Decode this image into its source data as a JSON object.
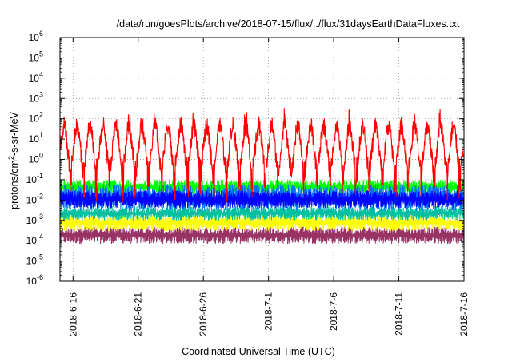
{
  "chart_data": {
    "type": "line",
    "title": "/data/run/goesPlots/archive/2018-07-15/flux/../flux/31daysEarthDataFluxes.txt",
    "xlabel": "Coordinated Universal Time (UTC)",
    "ylabel_parts": [
      "protons/cm",
      "2",
      "-s-sr-MeV"
    ],
    "y_scale": "log",
    "ylim": [
      1e-06,
      1000000.0
    ],
    "y_ticks": [
      {
        "base": "10",
        "exp": "-6"
      },
      {
        "base": "10",
        "exp": "-5"
      },
      {
        "base": "10",
        "exp": "-4"
      },
      {
        "base": "10",
        "exp": "-3"
      },
      {
        "base": "10",
        "exp": "-2"
      },
      {
        "base": "10",
        "exp": "-1"
      },
      {
        "base": "10",
        "exp": "0"
      },
      {
        "base": "10",
        "exp": "1"
      },
      {
        "base": "10",
        "exp": "2"
      },
      {
        "base": "10",
        "exp": "3"
      },
      {
        "base": "10",
        "exp": "4"
      },
      {
        "base": "10",
        "exp": "5"
      },
      {
        "base": "10",
        "exp": "6"
      }
    ],
    "x_range": [
      "2018-06-15",
      "2018-07-16"
    ],
    "x_ticks": [
      "2018-6-16",
      "2018-6-21",
      "2018-6-26",
      "2018-7-1",
      "2018-7-6",
      "2018-7-11",
      "2018-7-16"
    ],
    "grid": true,
    "series": [
      {
        "color": "#ff0000",
        "level_low": 0.3,
        "level_high": 60,
        "note_values": [
          100,
          0.1,
          200,
          0.2,
          150
        ]
      },
      {
        "color": "#00ff00",
        "level_low": 0.02,
        "level_high": 0.1
      },
      {
        "color": "#0070ff",
        "level_low": 0.003,
        "level_high": 0.06
      },
      {
        "color": "#0000ff",
        "level_low": 0.004,
        "level_high": 0.03
      },
      {
        "color": "#00c0a0",
        "level_low": 0.001,
        "level_high": 0.005
      },
      {
        "color": "#ffff00",
        "level_low": 0.0003,
        "level_high": 0.002
      },
      {
        "color": "#993366",
        "level_low": 7e-05,
        "level_high": 0.0005
      }
    ]
  }
}
